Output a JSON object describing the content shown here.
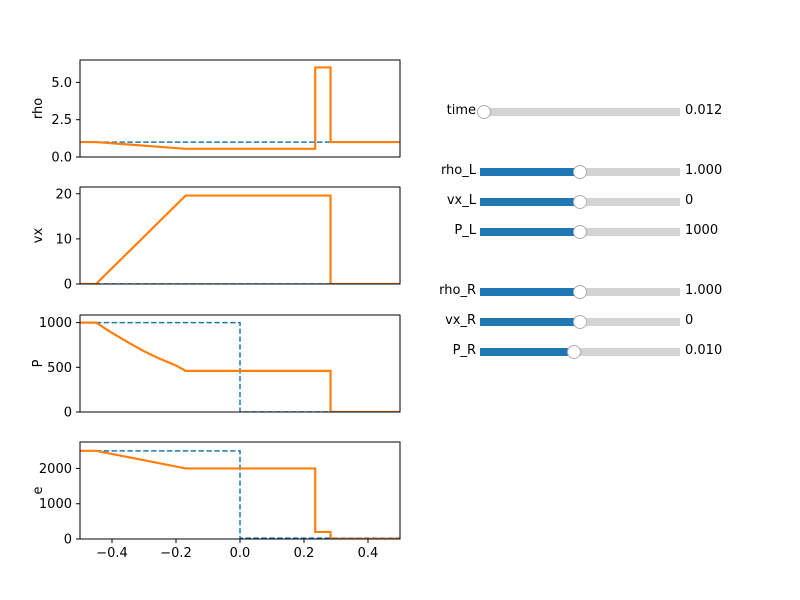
{
  "chart_data": [
    {
      "type": "line",
      "ylabel": "rho",
      "xlim": [
        -0.5,
        0.5
      ],
      "ylim": [
        0,
        6.5
      ],
      "yticks": [
        0.0,
        2.5,
        5.0
      ],
      "ytick_labels": [
        "0.0",
        "2.5",
        "5.0"
      ],
      "series": [
        {
          "color": "#1f77b4",
          "style": "dashed",
          "x": [
            -0.5,
            0.5
          ],
          "y": [
            1.0,
            1.0
          ]
        },
        {
          "color": "#ff7f0e",
          "style": "solid",
          "x": [
            -0.5,
            -0.45,
            -0.17,
            0.235,
            0.235,
            0.283,
            0.283,
            0.5
          ],
          "y": [
            1.0,
            1.0,
            0.55,
            0.55,
            6.0,
            6.0,
            1.0,
            1.0
          ]
        }
      ]
    },
    {
      "type": "line",
      "ylabel": "vx",
      "xlim": [
        -0.5,
        0.5
      ],
      "ylim": [
        0,
        21.5
      ],
      "yticks": [
        0,
        10,
        20
      ],
      "ytick_labels": [
        "0",
        "10",
        "20"
      ],
      "series": [
        {
          "color": "#1f77b4",
          "style": "dashed",
          "x": [
            -0.5,
            0.5
          ],
          "y": [
            0,
            0
          ]
        },
        {
          "color": "#ff7f0e",
          "style": "solid",
          "x": [
            -0.5,
            -0.45,
            -0.17,
            0.283,
            0.283,
            0.5
          ],
          "y": [
            0,
            0,
            19.6,
            19.6,
            0,
            0
          ]
        }
      ]
    },
    {
      "type": "line",
      "ylabel": "P",
      "xlim": [
        -0.5,
        0.5
      ],
      "ylim": [
        0,
        1085
      ],
      "yticks": [
        0,
        500,
        1000
      ],
      "ytick_labels": [
        "0",
        "500",
        "1000"
      ],
      "series": [
        {
          "color": "#1f77b4",
          "style": "dashed",
          "x": [
            -0.5,
            0.0,
            0.0,
            0.5
          ],
          "y": [
            1000,
            1000,
            0.01,
            0.01
          ]
        },
        {
          "color": "#ff7f0e",
          "style": "solid",
          "x": [
            -0.5,
            -0.45,
            -0.4,
            -0.35,
            -0.3,
            -0.25,
            -0.2,
            -0.17,
            0.283,
            0.283,
            0.5
          ],
          "y": [
            1000,
            1000,
            885,
            780,
            680,
            595,
            520,
            460,
            460,
            0.01,
            0.01
          ]
        }
      ]
    },
    {
      "type": "line",
      "ylabel": "e",
      "xlim": [
        -0.5,
        0.5
      ],
      "ylim": [
        0,
        2750
      ],
      "yticks": [
        0,
        1000,
        2000
      ],
      "ytick_labels": [
        "0",
        "1000",
        "2000"
      ],
      "xticks": [
        -0.4,
        -0.2,
        0.0,
        0.2,
        0.4
      ],
      "xtick_labels": [
        "−0.4",
        "−0.2",
        "0.0",
        "0.2",
        "0.4"
      ],
      "series": [
        {
          "color": "#1f77b4",
          "style": "dashed",
          "x": [
            -0.5,
            0.0,
            0.0,
            0.5
          ],
          "y": [
            2500,
            2500,
            25,
            25
          ]
        },
        {
          "color": "#ff7f0e",
          "style": "solid",
          "x": [
            -0.5,
            -0.45,
            -0.17,
            0.235,
            0.235,
            0.283,
            0.283,
            0.5
          ],
          "y": [
            2500,
            2500,
            2000,
            2000,
            200,
            200,
            5,
            5
          ]
        }
      ]
    }
  ],
  "sliders": [
    {
      "name": "time",
      "label": "time",
      "value": "0.012",
      "fraction": 0.02
    },
    {
      "name": "rho-l",
      "label": "rho_L",
      "value": "1.000",
      "fraction": 0.5
    },
    {
      "name": "vx-l",
      "label": "vx_L",
      "value": "0",
      "fraction": 0.5
    },
    {
      "name": "p-l",
      "label": "P_L",
      "value": "1000",
      "fraction": 0.5
    },
    {
      "name": "rho-r",
      "label": "rho_R",
      "value": "1.000",
      "fraction": 0.5
    },
    {
      "name": "vx-r",
      "label": "vx_R",
      "value": "0",
      "fraction": 0.5
    },
    {
      "name": "p-r",
      "label": "P_R",
      "value": "0.010",
      "fraction": 0.47
    }
  ]
}
